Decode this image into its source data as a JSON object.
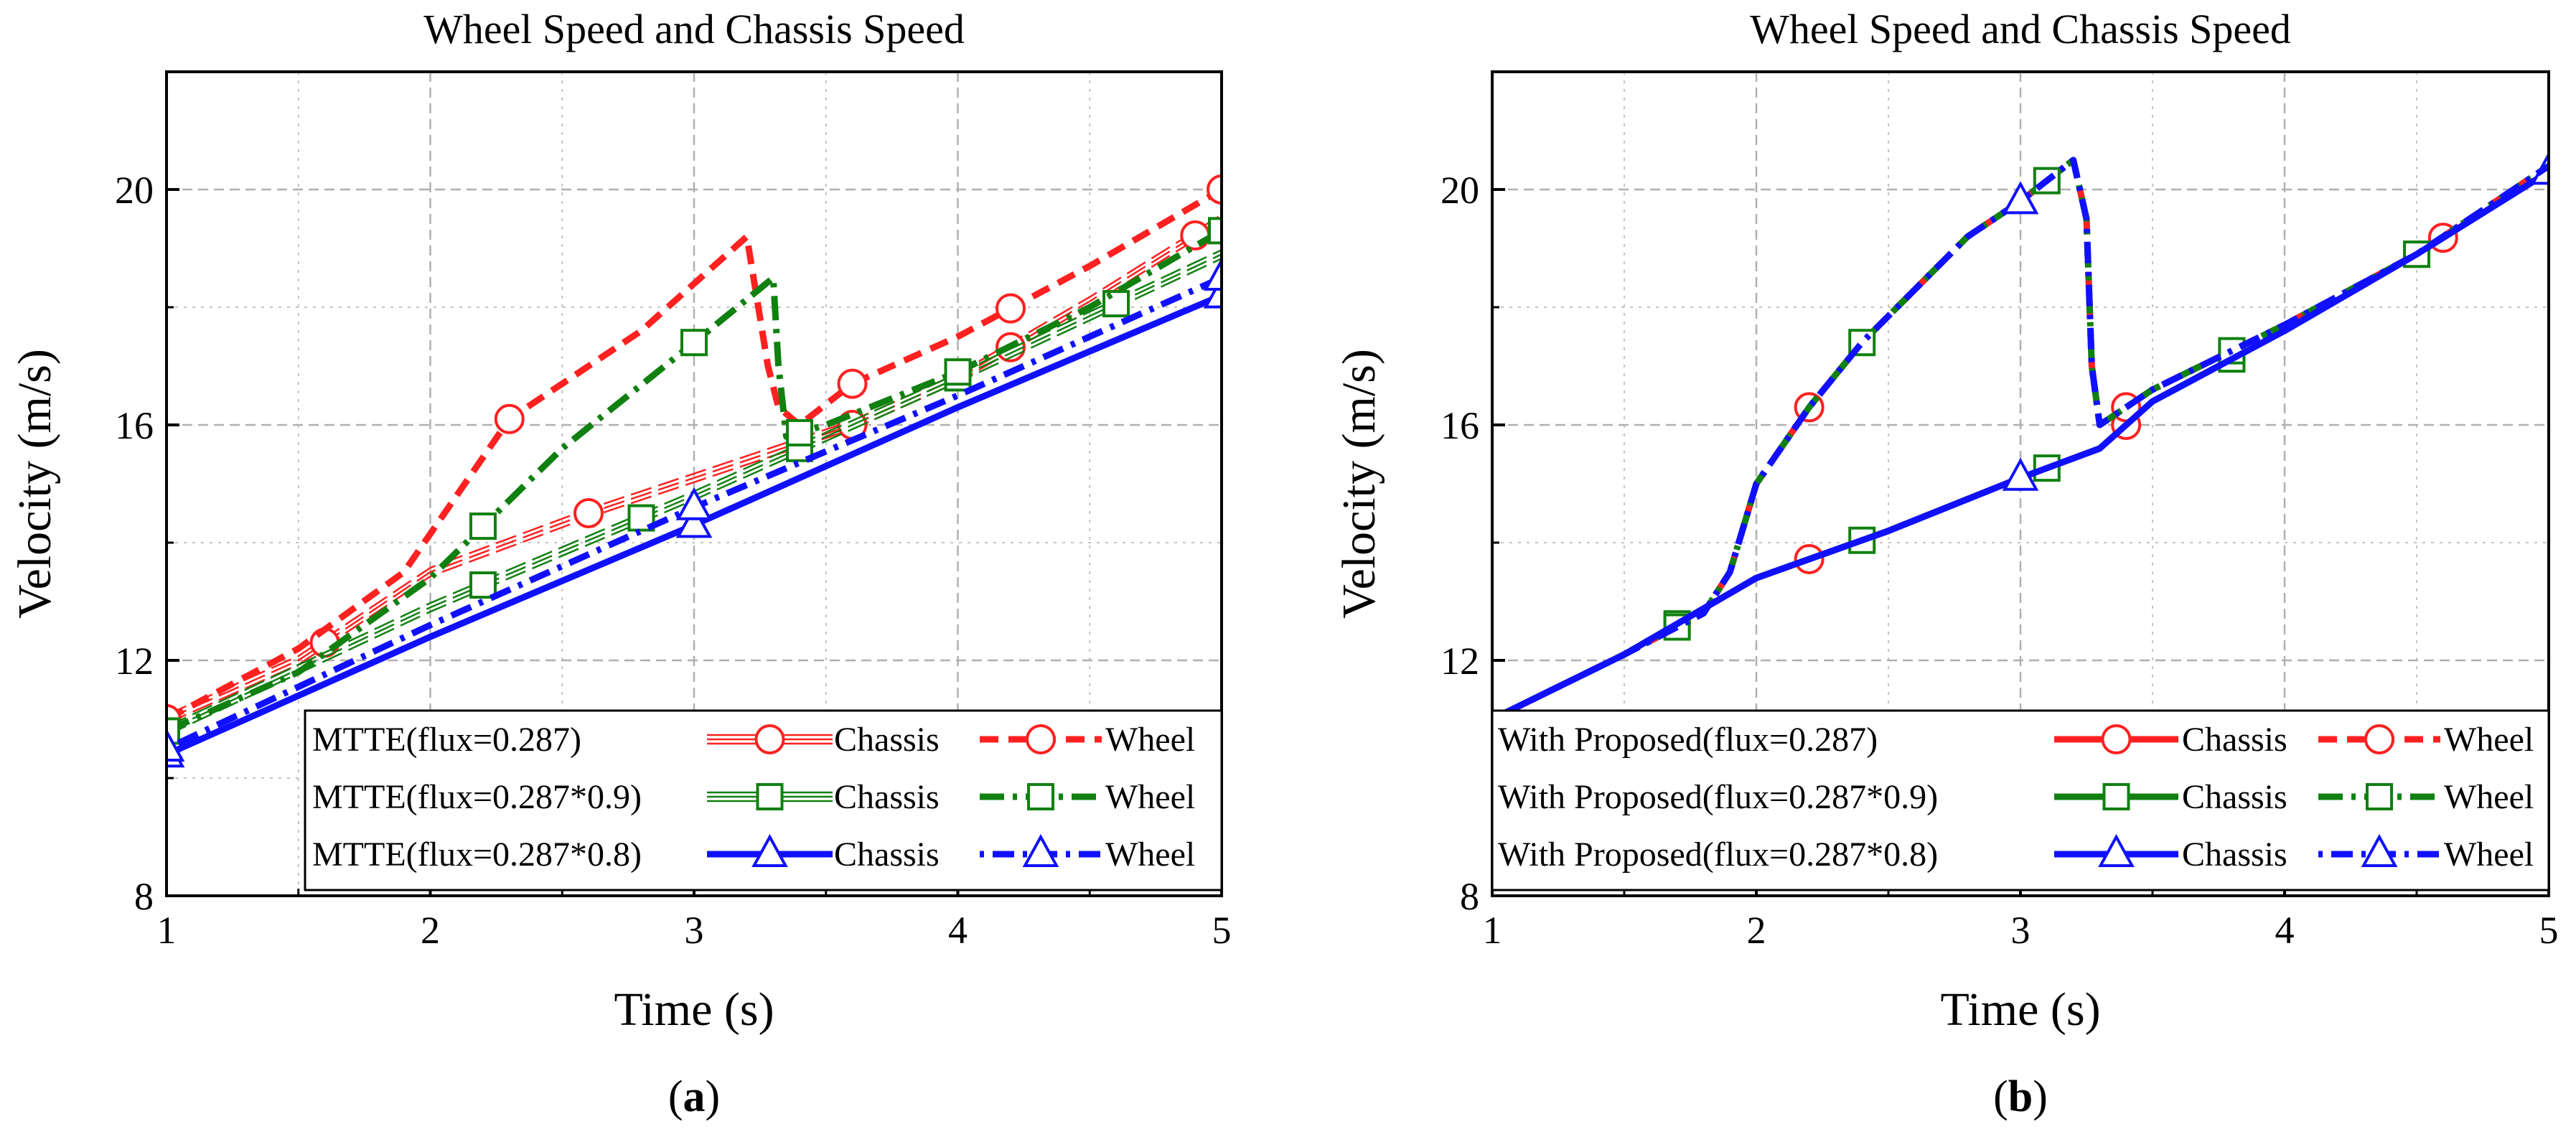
{
  "figure": {
    "panel_labels": [
      "a",
      "b"
    ]
  },
  "colors": {
    "red": "#ff2020",
    "green": "#108010",
    "blue": "#1010ff",
    "grid": "#b0b0b0",
    "axis": "#000000"
  },
  "chart_data": [
    {
      "type": "line",
      "title": "Wheel Speed and Chassis Speed",
      "xlabel": "Time (s)",
      "ylabel": "Velocity (m/s)",
      "xlim": [
        1,
        5
      ],
      "ylim": [
        8,
        22
      ],
      "xticks": [
        "1",
        "2",
        "3",
        "4",
        "5"
      ],
      "yticks": [
        "8",
        "12",
        "16",
        "20"
      ],
      "legend_placement": "bottom-right",
      "series": [
        {
          "name": "Chassis",
          "legend_prefix": "MTTE(flux=0.287)",
          "color": "#ff2020",
          "marker": "circle",
          "style": "hatched",
          "x": [
            1,
            1.5,
            2,
            2.6,
            3,
            3.6,
            4,
            4.5,
            5
          ],
          "y": [
            11.0,
            12.0,
            13.5,
            14.5,
            15.1,
            16.0,
            16.8,
            18.1,
            19.5
          ],
          "markers_x": [
            1,
            1.6,
            2.6,
            3.6,
            4.2,
            4.9
          ]
        },
        {
          "name": "Wheel",
          "legend_prefix": "MTTE(flux=0.287)",
          "color": "#ff2020",
          "marker": "circle",
          "style": "dash",
          "x": [
            1,
            1.5,
            1.9,
            2.3,
            2.8,
            3.2,
            3.28,
            3.32,
            3.4,
            3.6,
            4,
            4.5,
            5
          ],
          "y": [
            11.0,
            12.2,
            13.5,
            16.1,
            17.6,
            19.2,
            17.0,
            16.3,
            16.0,
            16.7,
            17.5,
            18.7,
            20.0
          ],
          "markers_x": [
            1,
            2.3,
            3.6,
            4.2,
            5
          ]
        },
        {
          "name": "Chassis",
          "legend_prefix": "MTTE(flux=0.287*0.9)",
          "color": "#108010",
          "marker": "square",
          "style": "hatched",
          "x": [
            1,
            2,
            3,
            4,
            5
          ],
          "y": [
            10.8,
            12.9,
            14.8,
            16.8,
            18.9
          ],
          "markers_x": [
            2.2,
            2.8,
            3.4,
            4,
            4.6
          ]
        },
        {
          "name": "Wheel",
          "legend_prefix": "MTTE(flux=0.287*0.9)",
          "color": "#108010",
          "marker": "square",
          "style": "dashdot",
          "x": [
            1,
            1.5,
            2,
            2.5,
            3,
            3.3,
            3.32,
            3.35,
            3.5,
            4,
            4.5,
            5
          ],
          "y": [
            10.8,
            11.8,
            13.4,
            15.6,
            17.4,
            18.5,
            17.0,
            15.8,
            16.0,
            16.9,
            18.0,
            19.3
          ],
          "markers_x": [
            1,
            2.2,
            3,
            3.4,
            4,
            5
          ]
        },
        {
          "name": "Chassis",
          "legend_prefix": "MTTE(flux=0.287*0.8)",
          "color": "#1010ff",
          "marker": "triangle",
          "style": "solid",
          "x": [
            1,
            2,
            3,
            4,
            5
          ],
          "y": [
            10.4,
            12.4,
            14.3,
            16.3,
            18.2
          ],
          "markers_x": [
            1,
            3,
            5
          ]
        },
        {
          "name": "Wheel",
          "legend_prefix": "MTTE(flux=0.287*0.8)",
          "color": "#1010ff",
          "marker": "triangle",
          "style": "dotdash",
          "x": [
            1,
            2,
            3,
            4,
            5
          ],
          "y": [
            10.5,
            12.6,
            14.6,
            16.5,
            18.5
          ],
          "markers_x": [
            1,
            3,
            5
          ]
        }
      ]
    },
    {
      "type": "line",
      "title": "Wheel Speed and Chassis Speed",
      "xlabel": "Time (s)",
      "ylabel": "Velocity (m/s)",
      "xlim": [
        1,
        5
      ],
      "ylim": [
        8,
        22
      ],
      "xticks": [
        "1",
        "2",
        "3",
        "4",
        "5"
      ],
      "yticks": [
        "8",
        "12",
        "16",
        "20"
      ],
      "legend_placement": "bottom-right",
      "series": [
        {
          "name": "Chassis",
          "legend_prefix": "With Proposed(flux=0.287)",
          "color": "#ff2020",
          "marker": "circle",
          "style": "solid",
          "x": [
            1,
            1.5,
            2,
            2.5,
            3,
            3.3,
            3.5,
            4,
            4.5,
            5
          ],
          "y": [
            11.0,
            12.1,
            13.4,
            14.2,
            15.1,
            15.6,
            16.4,
            17.6,
            18.9,
            20.3
          ],
          "markers_x": [
            2.2,
            3.4,
            4.6
          ]
        },
        {
          "name": "Wheel",
          "legend_prefix": "With Proposed(flux=0.287)",
          "color": "#ff2020",
          "marker": "circle",
          "style": "dash",
          "x": [
            1,
            1.5,
            1.8,
            1.9,
            2,
            2.2,
            2.4,
            2.8,
            3,
            3.2,
            3.25,
            3.27,
            3.3,
            3.5,
            4,
            4.5,
            5
          ],
          "y": [
            11.0,
            12.1,
            12.8,
            13.5,
            15.0,
            16.3,
            17.4,
            19.2,
            19.8,
            20.5,
            19.5,
            17.0,
            16.0,
            16.6,
            17.7,
            18.9,
            20.4
          ],
          "markers_x": [
            2.2,
            3.4
          ]
        },
        {
          "name": "Chassis",
          "legend_prefix": "With Proposed(flux=0.287*0.9)",
          "color": "#108010",
          "marker": "square",
          "style": "solid",
          "x": [
            1,
            1.5,
            2,
            2.5,
            3,
            3.3,
            3.5,
            4,
            4.5,
            5
          ],
          "y": [
            11.0,
            12.1,
            13.4,
            14.2,
            15.1,
            15.6,
            16.4,
            17.6,
            18.9,
            20.3
          ],
          "markers_x": [
            1.7,
            2.4,
            3.1,
            3.8,
            4.5
          ]
        },
        {
          "name": "Wheel",
          "legend_prefix": "With Proposed(flux=0.287*0.9)",
          "color": "#108010",
          "marker": "square",
          "style": "dashdot",
          "x": [
            1,
            1.5,
            1.8,
            1.9,
            2,
            2.2,
            2.4,
            2.8,
            3,
            3.2,
            3.25,
            3.27,
            3.3,
            3.5,
            4,
            4.5,
            5
          ],
          "y": [
            11.0,
            12.1,
            12.8,
            13.5,
            15.0,
            16.3,
            17.4,
            19.2,
            19.8,
            20.5,
            19.5,
            17.0,
            16.0,
            16.6,
            17.7,
            18.9,
            20.4
          ],
          "markers_x": [
            1.7,
            2.4,
            3.1,
            3.8,
            4.5
          ]
        },
        {
          "name": "Chassis",
          "legend_prefix": "With Proposed(flux=0.287*0.8)",
          "color": "#1010ff",
          "marker": "triangle",
          "style": "solid",
          "x": [
            1,
            1.5,
            2,
            2.5,
            3,
            3.3,
            3.5,
            4,
            4.5,
            5
          ],
          "y": [
            11.0,
            12.1,
            13.4,
            14.2,
            15.1,
            15.6,
            16.4,
            17.6,
            18.9,
            20.3
          ],
          "markers_x": [
            3,
            5
          ]
        },
        {
          "name": "Wheel",
          "legend_prefix": "With Proposed(flux=0.287*0.8)",
          "color": "#1010ff",
          "marker": "triangle",
          "style": "dotdash",
          "x": [
            1,
            1.5,
            1.8,
            1.9,
            2,
            2.2,
            2.4,
            2.8,
            3,
            3.2,
            3.25,
            3.27,
            3.3,
            3.5,
            4,
            4.5,
            5
          ],
          "y": [
            11.0,
            12.1,
            12.8,
            13.5,
            15.0,
            16.3,
            17.4,
            19.2,
            19.8,
            20.5,
            19.5,
            17.0,
            16.0,
            16.6,
            17.7,
            18.9,
            20.4
          ],
          "markers_x": [
            3
          ]
        }
      ]
    }
  ]
}
